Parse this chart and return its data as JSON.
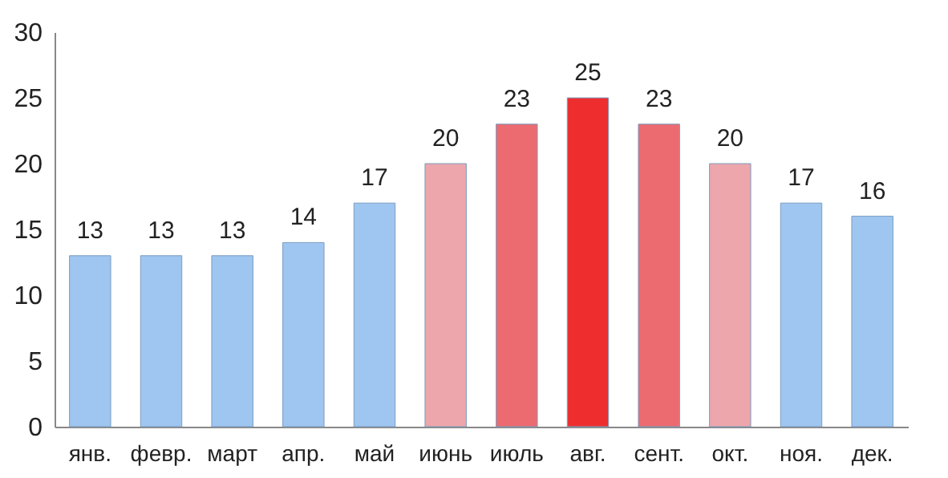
{
  "chart_data": {
    "type": "bar",
    "categories": [
      "янв.",
      "февр.",
      "март",
      "апр.",
      "май",
      "июнь",
      "июль",
      "авг.",
      "сент.",
      "окт.",
      "ноя.",
      "дек."
    ],
    "values": [
      13,
      13,
      13,
      14,
      17,
      20,
      23,
      25,
      23,
      20,
      17,
      16
    ],
    "colors": [
      "#9fc6f0",
      "#9fc6f0",
      "#9fc6f0",
      "#9fc6f0",
      "#9fc6f0",
      "#eda6ab",
      "#ec6b70",
      "#ee2d2f",
      "#ec6b70",
      "#eda6ab",
      "#9fc6f0",
      "#9fc6f0"
    ],
    "ylim": [
      0,
      30
    ],
    "yticks": [
      0,
      5,
      10,
      15,
      20,
      25,
      30
    ],
    "grid": false,
    "data_labels": true
  }
}
